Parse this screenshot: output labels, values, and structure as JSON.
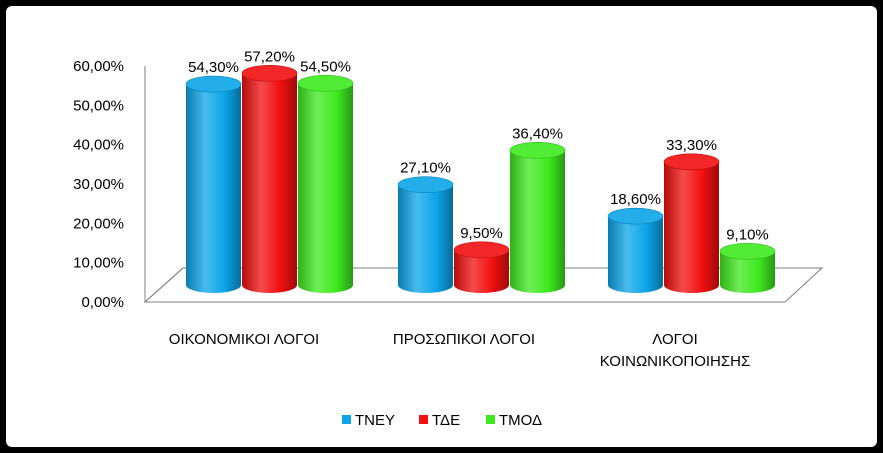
{
  "chart_data": {
    "type": "bar",
    "title": "",
    "xlabel": "",
    "ylabel": "",
    "ylim": [
      0,
      60
    ],
    "yticks": [
      "0,00%",
      "10,00%",
      "20,00%",
      "30,00%",
      "40,00%",
      "50,00%",
      "60,00%"
    ],
    "categories": [
      [
        "ΟΙΚΟΝΟΜΙΚΟΙ ΛΟΓΟΙ"
      ],
      [
        "ΠΡΟΣΩΠΙΚΟΙ ΛΟΓΟΙ"
      ],
      [
        "ΛΟΓΟΙ",
        "ΚΟΙΝΩΝΙΚΟΠΟΙΗΣΗΣ"
      ]
    ],
    "series": [
      {
        "name": "ΤΝΕΥ",
        "color": "#0BA5E8",
        "values": [
          54.3,
          27.1,
          18.6
        ],
        "labels": [
          "54,30%",
          "27,10%",
          "18,60%"
        ]
      },
      {
        "name": "ΤΔΕ",
        "color": "#F20F0F",
        "values": [
          57.2,
          9.5,
          33.3
        ],
        "labels": [
          "57,20%",
          "9,50%",
          "33,30%"
        ]
      },
      {
        "name": "ΤΜΟΔ",
        "color": "#3EEA1E",
        "values": [
          54.5,
          36.4,
          9.1
        ],
        "labels": [
          "54,50%",
          "36,40%",
          "9,10%"
        ]
      }
    ],
    "legend_position": "bottom",
    "grid": false,
    "style": "3d-cylinder"
  }
}
